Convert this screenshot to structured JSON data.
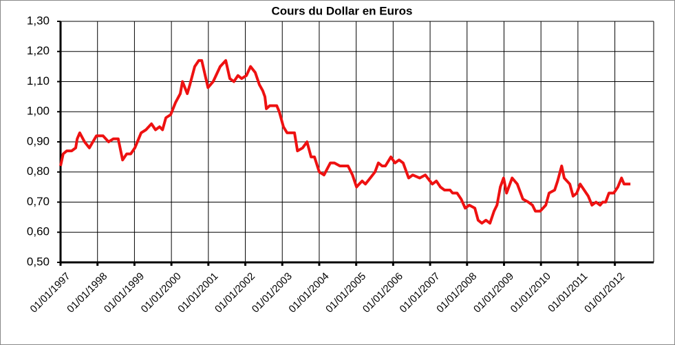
{
  "chart_data": {
    "type": "line",
    "title": "Cours du Dollar en Euros",
    "color": "#ee1111",
    "grid": true,
    "xlim": [
      1997,
      2013.05
    ],
    "ylim": [
      0.5,
      1.3
    ],
    "yticks": [
      {
        "value": 0.5,
        "label": "0,50"
      },
      {
        "value": 0.6,
        "label": "0,60"
      },
      {
        "value": 0.7,
        "label": "0,70"
      },
      {
        "value": 0.8,
        "label": "0,80"
      },
      {
        "value": 0.9,
        "label": "0,90"
      },
      {
        "value": 1.0,
        "label": "1,00"
      },
      {
        "value": 1.1,
        "label": "1,10"
      },
      {
        "value": 1.2,
        "label": "1,20"
      },
      {
        "value": 1.3,
        "label": "1,30"
      }
    ],
    "xticks": [
      {
        "value": 1997,
        "label": "01/01/1997"
      },
      {
        "value": 1998,
        "label": "01/01/1998"
      },
      {
        "value": 1999,
        "label": "01/01/1999"
      },
      {
        "value": 2000,
        "label": "01/01/2000"
      },
      {
        "value": 2001,
        "label": "01/01/2001"
      },
      {
        "value": 2002,
        "label": "01/01/2002"
      },
      {
        "value": 2003,
        "label": "01/01/2003"
      },
      {
        "value": 2004,
        "label": "01/01/2004"
      },
      {
        "value": 2005,
        "label": "01/01/2005"
      },
      {
        "value": 2006,
        "label": "01/01/2006"
      },
      {
        "value": 2007,
        "label": "01/01/2007"
      },
      {
        "value": 2008,
        "label": "01/01/2008"
      },
      {
        "value": 2009,
        "label": "01/01/2009"
      },
      {
        "value": 2010,
        "label": "01/01/2010"
      },
      {
        "value": 2011,
        "label": "01/01/2011"
      },
      {
        "value": 2012,
        "label": "01/01/2012"
      }
    ],
    "x": [
      1997.0,
      1997.07,
      1997.17,
      1997.3,
      1997.41,
      1997.45,
      1997.52,
      1997.65,
      1997.78,
      1997.97,
      1998.15,
      1998.3,
      1998.43,
      1998.56,
      1998.68,
      1998.79,
      1998.9,
      1999.01,
      1999.18,
      1999.31,
      1999.46,
      1999.57,
      1999.68,
      1999.76,
      1999.85,
      1999.98,
      2000.11,
      2000.24,
      2000.3,
      2000.43,
      2000.5,
      2000.63,
      2000.74,
      2000.82,
      2000.99,
      2001.13,
      2001.32,
      2001.47,
      2001.58,
      2001.69,
      2001.8,
      2001.9,
      2002.03,
      2002.14,
      2002.27,
      2002.38,
      2002.47,
      2002.53,
      2002.57,
      2002.66,
      2002.85,
      2002.92,
      2003.03,
      2003.13,
      2003.33,
      2003.41,
      2003.55,
      2003.67,
      2003.78,
      2003.87,
      2004.0,
      2004.13,
      2004.3,
      2004.41,
      2004.56,
      2004.64,
      2004.78,
      2004.9,
      2005.01,
      2005.08,
      2005.16,
      2005.25,
      2005.38,
      2005.51,
      2005.6,
      2005.7,
      2005.79,
      2005.94,
      2006.05,
      2006.16,
      2006.27,
      2006.42,
      2006.53,
      2006.72,
      2006.87,
      2007.06,
      2007.17,
      2007.28,
      2007.39,
      2007.54,
      2007.61,
      2007.73,
      2007.84,
      2007.95,
      2008.06,
      2008.21,
      2008.3,
      2008.4,
      2008.51,
      2008.62,
      2008.73,
      2008.81,
      2008.9,
      2008.99,
      2009.07,
      2009.22,
      2009.36,
      2009.51,
      2009.66,
      2009.77,
      2009.85,
      2009.98,
      2010.13,
      2010.22,
      2010.37,
      2010.45,
      2010.56,
      2010.63,
      2010.78,
      2010.87,
      2010.97,
      2011.06,
      2011.17,
      2011.28,
      2011.38,
      2011.49,
      2011.6,
      2011.67,
      2011.75,
      2011.84,
      2011.97,
      2012.08,
      2012.18,
      2012.25,
      2012.42
    ],
    "values": [
      0.82,
      0.86,
      0.87,
      0.87,
      0.88,
      0.91,
      0.93,
      0.9,
      0.88,
      0.92,
      0.92,
      0.9,
      0.91,
      0.91,
      0.84,
      0.86,
      0.86,
      0.88,
      0.93,
      0.94,
      0.96,
      0.94,
      0.95,
      0.94,
      0.98,
      0.99,
      1.03,
      1.06,
      1.1,
      1.06,
      1.09,
      1.15,
      1.17,
      1.17,
      1.08,
      1.1,
      1.15,
      1.17,
      1.11,
      1.1,
      1.12,
      1.11,
      1.12,
      1.15,
      1.13,
      1.09,
      1.07,
      1.05,
      1.01,
      1.02,
      1.02,
      1.0,
      0.95,
      0.93,
      0.93,
      0.87,
      0.88,
      0.9,
      0.85,
      0.85,
      0.8,
      0.79,
      0.83,
      0.83,
      0.82,
      0.82,
      0.82,
      0.79,
      0.75,
      0.76,
      0.77,
      0.76,
      0.78,
      0.8,
      0.83,
      0.82,
      0.82,
      0.85,
      0.83,
      0.84,
      0.83,
      0.78,
      0.79,
      0.78,
      0.79,
      0.76,
      0.77,
      0.75,
      0.74,
      0.74,
      0.73,
      0.73,
      0.71,
      0.68,
      0.69,
      0.68,
      0.64,
      0.63,
      0.64,
      0.63,
      0.67,
      0.69,
      0.75,
      0.78,
      0.73,
      0.78,
      0.76,
      0.71,
      0.7,
      0.69,
      0.67,
      0.67,
      0.69,
      0.73,
      0.74,
      0.77,
      0.82,
      0.78,
      0.76,
      0.72,
      0.73,
      0.76,
      0.74,
      0.72,
      0.69,
      0.7,
      0.69,
      0.7,
      0.7,
      0.73,
      0.73,
      0.75,
      0.78,
      0.76,
      0.76
    ]
  }
}
